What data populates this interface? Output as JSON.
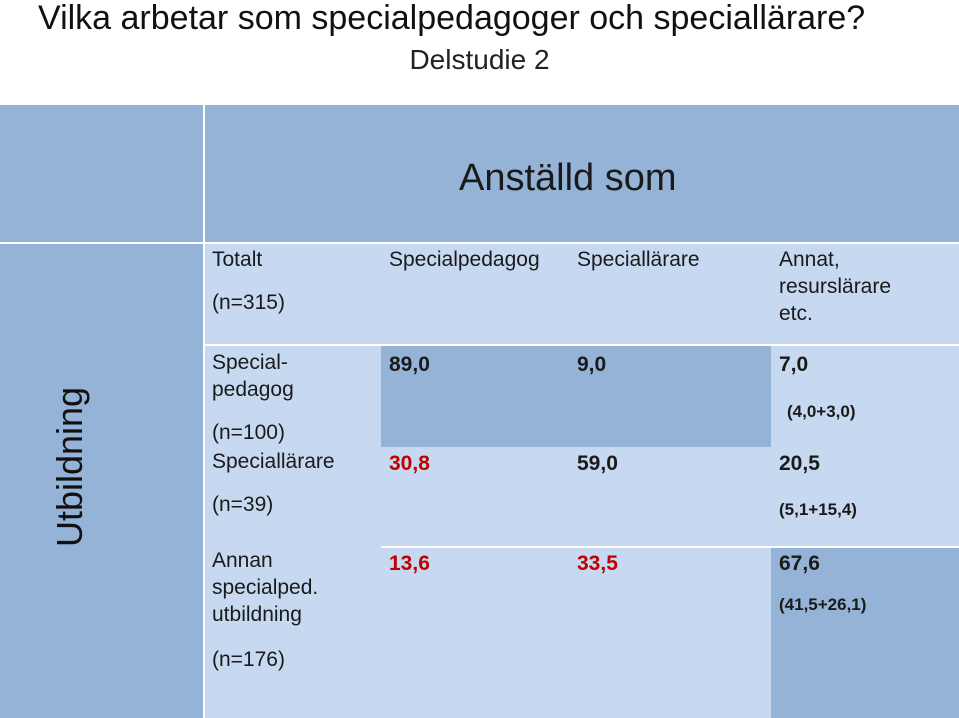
{
  "title": "Vilka arbetar som specialpedagoger och speciallärare?",
  "subtitle": "Delstudie 2",
  "table": {
    "column_group_header": "Anställd som",
    "row_group_header": "Utbildning",
    "corner": {
      "label": "Totalt",
      "n": "(n=315)"
    },
    "columns": [
      {
        "label": "Specialpedagog"
      },
      {
        "label": "Speciallärare"
      },
      {
        "label_lines": [
          "Annat,",
          "resurslärare",
          "etc."
        ]
      }
    ],
    "rows": [
      {
        "label_lines": [
          "Special-",
          "pedagog"
        ],
        "n": "(n=100)",
        "values": [
          "89,0",
          "9,0",
          "7,0"
        ],
        "breakdown": "(4,0+3,0)"
      },
      {
        "label_lines": [
          "Speciallärare"
        ],
        "n": "(n=39)",
        "values": [
          "30,8",
          "59,0",
          "20,5"
        ],
        "breakdown": "(5,1+15,4)"
      },
      {
        "label_lines": [
          "Annan",
          "specialped.",
          "utbildning"
        ],
        "n": "(n=176)",
        "values": [
          "13,6",
          "33,5",
          "67,6"
        ],
        "breakdown": "(41,5+26,1)"
      }
    ]
  },
  "colors": {
    "header_dark": "#95b3d7",
    "cell_light": "#c6d9f1",
    "highlight_red": "#c00000"
  }
}
